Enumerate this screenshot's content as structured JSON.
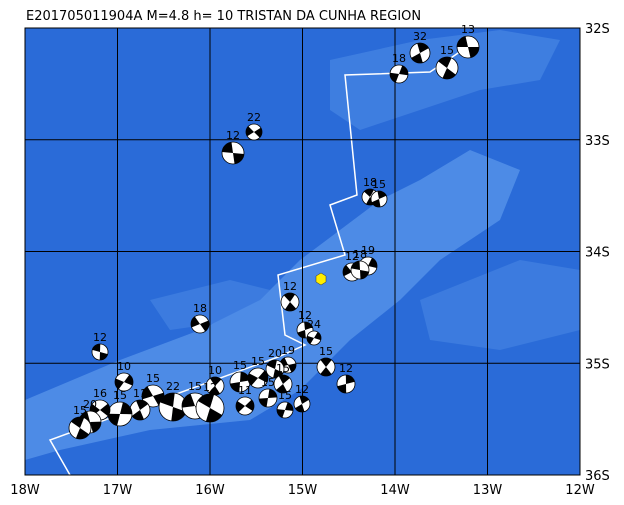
{
  "title": "E201705011904A  M=4.8  h= 10  TRISTAN DA CUNHA REGION",
  "lat_labels": [
    "32S",
    "33S",
    "34S",
    "35S",
    "36S"
  ],
  "lon_labels": [
    "18W",
    "17W",
    "16W",
    "15W",
    "14W",
    "13W",
    "12W"
  ],
  "events": [
    {
      "depth": "13"
    },
    {
      "depth": "15"
    },
    {
      "depth": "32"
    },
    {
      "depth": "18"
    },
    {
      "depth": "22"
    },
    {
      "depth": "12"
    },
    {
      "depth": "18"
    },
    {
      "depth": "15"
    },
    {
      "depth": "19"
    },
    {
      "depth": "12"
    },
    {
      "depth": "18"
    },
    {
      "depth": "12"
    },
    {
      "depth": "12"
    },
    {
      "depth": "24"
    },
    {
      "depth": "18"
    },
    {
      "depth": "12"
    },
    {
      "depth": "15"
    },
    {
      "depth": "12"
    },
    {
      "depth": "10"
    },
    {
      "depth": "15"
    },
    {
      "depth": "22"
    },
    {
      "depth": "10"
    },
    {
      "depth": "15"
    },
    {
      "depth": "15"
    },
    {
      "depth": "19"
    },
    {
      "depth": "20"
    },
    {
      "depth": "15"
    },
    {
      "depth": "15"
    },
    {
      "depth": "11"
    },
    {
      "depth": "15"
    },
    {
      "depth": "12"
    },
    {
      "depth": "11"
    },
    {
      "depth": "15"
    },
    {
      "depth": "16"
    },
    {
      "depth": "20"
    },
    {
      "depth": "15"
    },
    {
      "depth": "12"
    },
    {
      "depth": "15"
    }
  ]
}
